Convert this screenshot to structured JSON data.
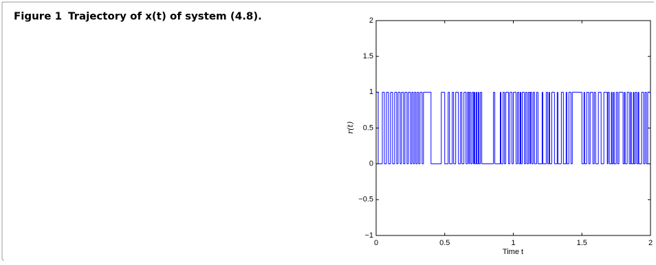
{
  "figure_label": "Figure 1",
  "caption": "Trajectory of x(t) of system (4.8).",
  "chart_data": {
    "type": "step",
    "xlabel": "Time t",
    "ylabel": "r(t)",
    "color": "#0000ff",
    "xlim": [
      0,
      2
    ],
    "ylim": [
      -1,
      2
    ],
    "xticks": [
      0,
      0.5,
      1,
      1.5,
      2
    ],
    "yticks": [
      {
        "value": -1,
        "label": "−1"
      },
      {
        "value": -0.5,
        "label": "−0.5"
      },
      0,
      0.5,
      1,
      1.5,
      2
    ],
    "x": [
      0,
      0.015,
      0.045,
      0.06,
      0.075,
      0.09,
      0.105,
      0.12,
      0.135,
      0.15,
      0.16,
      0.175,
      0.185,
      0.2,
      0.21,
      0.225,
      0.235,
      0.25,
      0.26,
      0.27,
      0.28,
      0.29,
      0.3,
      0.31,
      0.32,
      0.335,
      0.345,
      0.4,
      0.475,
      0.5,
      0.525,
      0.535,
      0.555,
      0.565,
      0.58,
      0.6,
      0.615,
      0.625,
      0.64,
      0.655,
      0.665,
      0.675,
      0.68,
      0.69,
      0.7,
      0.71,
      0.715,
      0.72,
      0.73,
      0.735,
      0.745,
      0.75,
      0.76,
      0.77,
      0.855,
      0.865,
      0.905,
      0.91,
      0.925,
      0.935,
      0.945,
      0.965,
      0.975,
      0.99,
      1.0,
      1.02,
      1.03,
      1.04,
      1.05,
      1.055,
      1.065,
      1.08,
      1.09,
      1.1,
      1.11,
      1.12,
      1.125,
      1.135,
      1.145,
      1.155,
      1.17,
      1.18,
      1.21,
      1.215,
      1.24,
      1.25,
      1.26,
      1.265,
      1.28,
      1.3,
      1.32,
      1.325,
      1.35,
      1.365,
      1.385,
      1.39,
      1.405,
      1.42,
      1.43,
      1.5,
      1.515,
      1.52,
      1.535,
      1.55,
      1.56,
      1.58,
      1.59,
      1.6,
      1.62,
      1.64,
      1.66,
      1.685,
      1.69,
      1.7,
      1.715,
      1.72,
      1.73,
      1.735,
      1.75,
      1.76,
      1.77,
      1.8,
      1.81,
      1.815,
      1.83,
      1.845,
      1.855,
      1.86,
      1.875,
      1.88,
      1.89,
      1.9,
      1.91,
      1.915,
      1.935,
      1.95,
      1.96,
      1.97,
      1.98,
      2
    ],
    "values": [
      1,
      0,
      1,
      0,
      1,
      0,
      1,
      0,
      1,
      0,
      1,
      0,
      1,
      0,
      1,
      0,
      1,
      0,
      1,
      0,
      1,
      0,
      1,
      0,
      1,
      0,
      1,
      0,
      1,
      0,
      1,
      0,
      1,
      0,
      1,
      0,
      1,
      0,
      1,
      0,
      1,
      0,
      1,
      0,
      1,
      0,
      1,
      0,
      1,
      0,
      1,
      0,
      1,
      0,
      1,
      0,
      1,
      0,
      1,
      0,
      1,
      0,
      1,
      0,
      1,
      0,
      1,
      0,
      1,
      0,
      1,
      0,
      1,
      0,
      1,
      0,
      1,
      0,
      1,
      0,
      1,
      0,
      1,
      0,
      1,
      0,
      1,
      0,
      1,
      0,
      1,
      0,
      1,
      0,
      1,
      0,
      1,
      0,
      1,
      0,
      1,
      0,
      1,
      0,
      1,
      0,
      1,
      0,
      1,
      0,
      1,
      0,
      1,
      0,
      1,
      0,
      1,
      0,
      1,
      0,
      1,
      0,
      1,
      0,
      1,
      0,
      1,
      0,
      1,
      0,
      1,
      0,
      1,
      0,
      1,
      0,
      1,
      0,
      1,
      1
    ]
  }
}
